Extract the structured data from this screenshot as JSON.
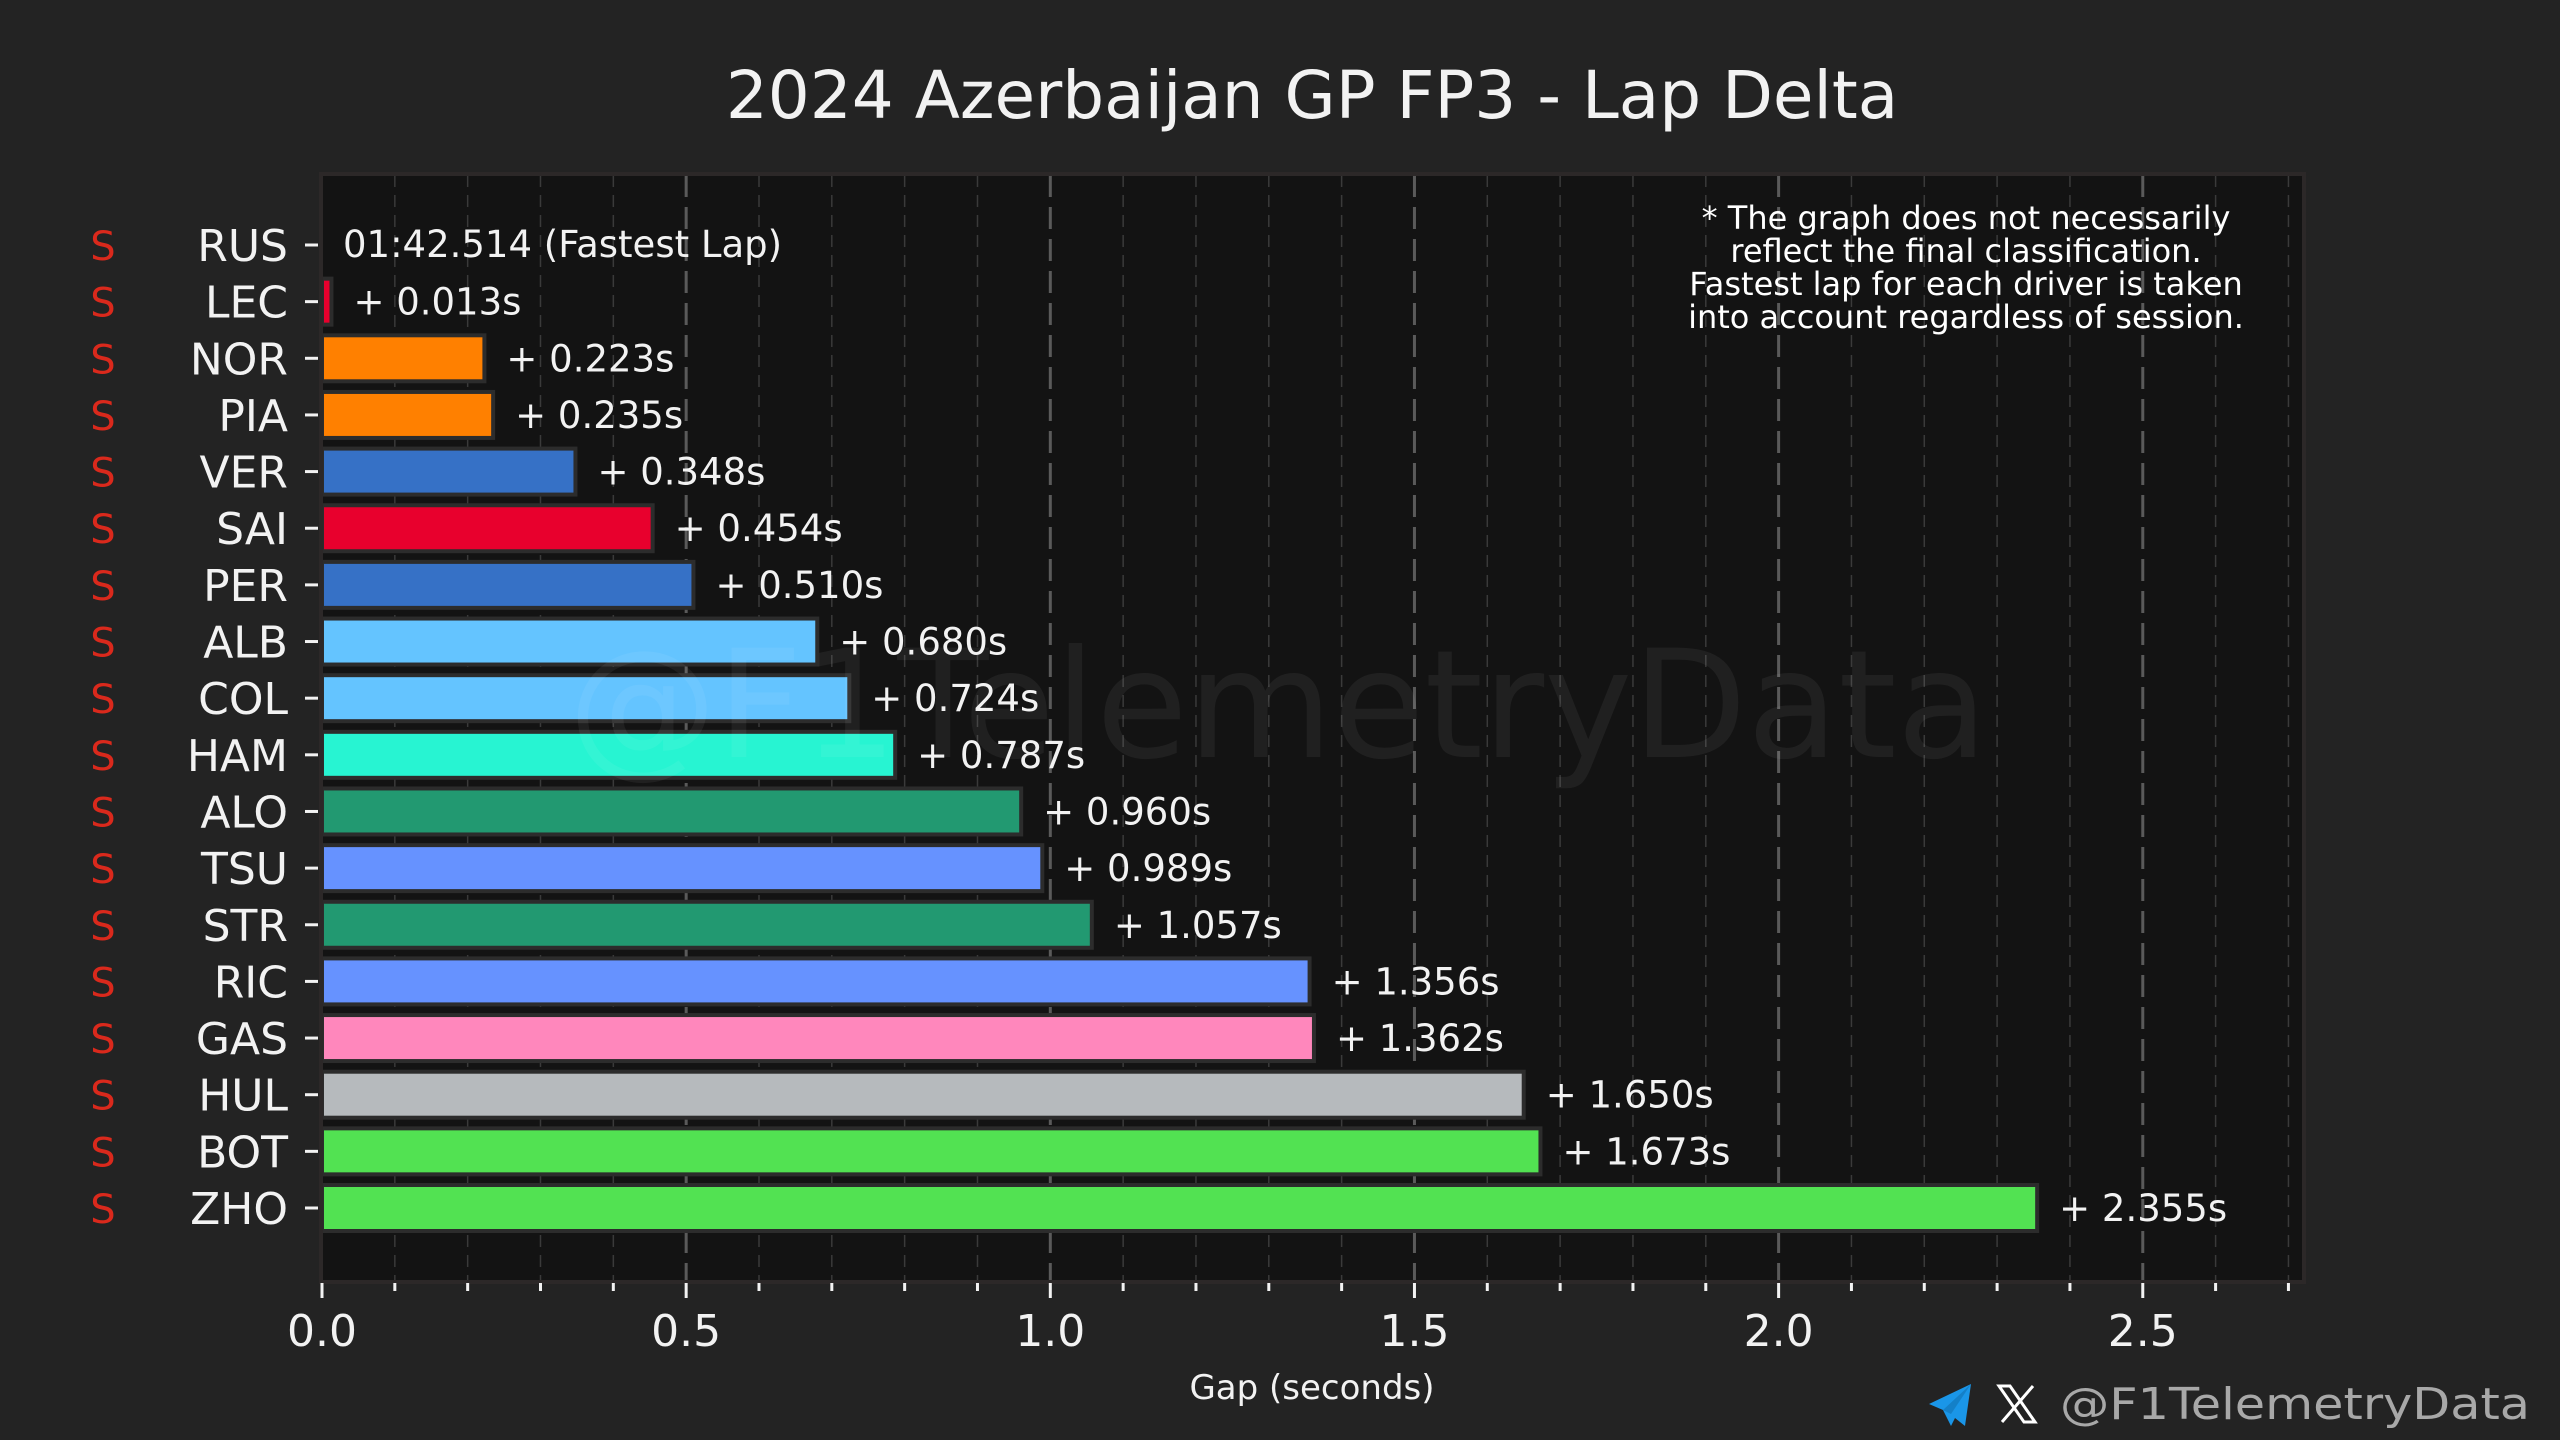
{
  "chart_data": {
    "type": "bar",
    "orientation": "horizontal",
    "title": "2024 Azerbaijan GP FP3 - Lap Delta",
    "xlabel": "Gap (seconds)",
    "ylabel": "",
    "xlim": [
      0,
      2.72
    ],
    "xticks": [
      0.0,
      0.5,
      1.0,
      1.5,
      2.0,
      2.5
    ],
    "xtick_labels": [
      "0.0",
      "0.5",
      "1.0",
      "1.5",
      "2.0",
      "2.5"
    ],
    "minor_tick_step": 0.1,
    "grid": true,
    "fastest_lap_label": "01:42.514 (Fastest Lap)",
    "note_lines": [
      "* The graph does not necessarily",
      "reflect the final classification.",
      "Fastest lap for each driver is taken",
      "into account regardless of session."
    ],
    "watermark": "@F1TelemetryData",
    "categories": [
      "RUS",
      "LEC",
      "NOR",
      "PIA",
      "VER",
      "SAI",
      "PER",
      "ALB",
      "COL",
      "HAM",
      "ALO",
      "TSU",
      "STR",
      "RIC",
      "GAS",
      "HUL",
      "BOT",
      "ZHO"
    ],
    "compounds": [
      "S",
      "S",
      "S",
      "S",
      "S",
      "S",
      "S",
      "S",
      "S",
      "S",
      "S",
      "S",
      "S",
      "S",
      "S",
      "S",
      "S",
      "S"
    ],
    "values": [
      0.0,
      0.013,
      0.223,
      0.235,
      0.348,
      0.454,
      0.51,
      0.68,
      0.724,
      0.787,
      0.96,
      0.989,
      1.057,
      1.356,
      1.362,
      1.65,
      1.673,
      2.355
    ],
    "value_labels": [
      "",
      "+ 0.013s",
      "+ 0.223s",
      "+ 0.235s",
      "+ 0.348s",
      "+ 0.454s",
      "+ 0.510s",
      "+ 0.680s",
      "+ 0.724s",
      "+ 0.787s",
      "+ 0.960s",
      "+ 0.989s",
      "+ 1.057s",
      "+ 1.356s",
      "+ 1.362s",
      "+ 1.650s",
      "+ 1.673s",
      "+ 2.355s"
    ],
    "colors": [
      "#27F4D2",
      "#E8002D",
      "#FF8000",
      "#FF8000",
      "#3671C6",
      "#E8002D",
      "#3671C6",
      "#64C4FF",
      "#64C4FF",
      "#27F4D2",
      "#229971",
      "#6692FF",
      "#229971",
      "#6692FF",
      "#FF87BC",
      "#B6BABD",
      "#52E252",
      "#52E252"
    ],
    "compound_color": "#DA291C"
  },
  "footer": {
    "handle": "@F1TelemetryData",
    "icons": [
      "telegram-icon",
      "x-icon"
    ],
    "telegram_color": "#1A96E8"
  }
}
